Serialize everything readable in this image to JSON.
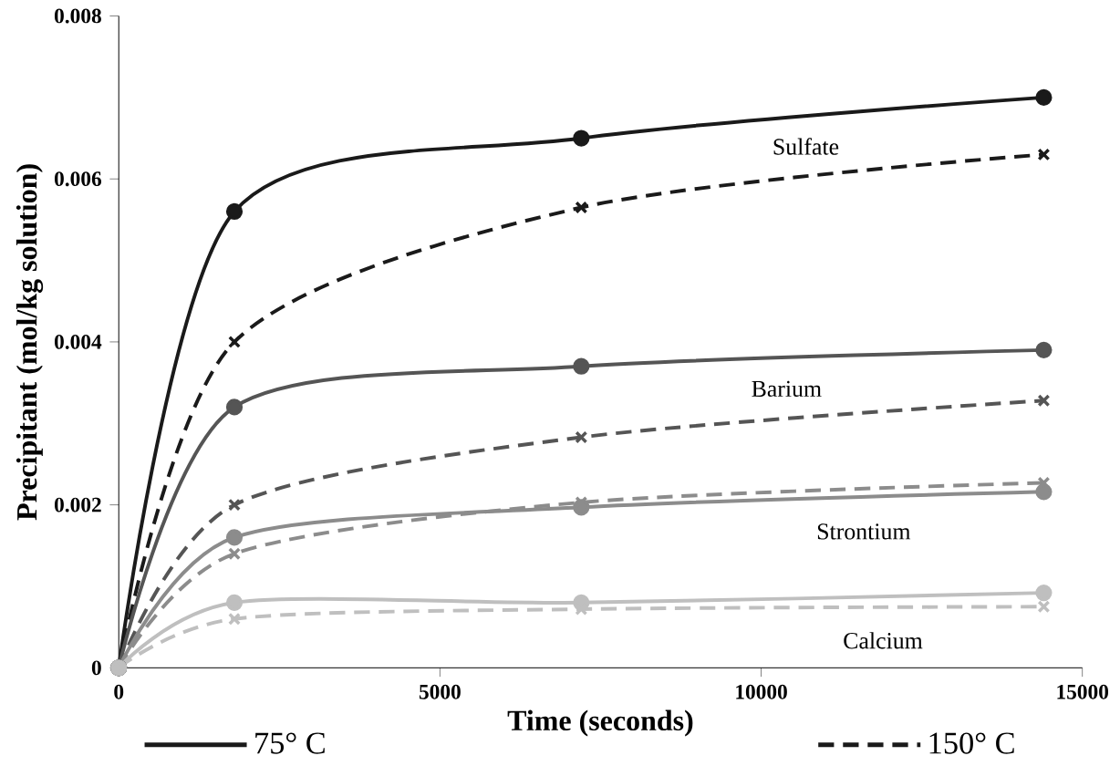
{
  "chart_data": {
    "type": "line",
    "xlabel": "Time (seconds)",
    "ylabel": "Precipitant (mol/kg solution)",
    "x": [
      0,
      1800,
      7200,
      14400
    ],
    "series": [
      {
        "name": "75° C",
        "color": "#1a1a1a",
        "marker": "circle",
        "line_style": "solid",
        "values": [
          0,
          0.0056,
          0.0065,
          0.007
        ]
      },
      {
        "name": "150° C",
        "color": "#1a1a1a",
        "marker": "cross",
        "line_style": "dashed",
        "values": [
          0,
          0.004,
          0.00565,
          0.0063
        ]
      },
      {
        "color": "#555555",
        "marker": "circle",
        "line_style": "solid",
        "values": [
          0,
          0.0032,
          0.0037,
          0.0039
        ]
      },
      {
        "color": "#555555",
        "marker": "cross",
        "line_style": "dashed",
        "values": [
          0,
          0.002,
          0.00283,
          0.00328
        ]
      },
      {
        "color": "#8c8c8c",
        "marker": "circle",
        "line_style": "solid",
        "values": [
          0,
          0.0016,
          0.00197,
          0.00216
        ]
      },
      {
        "color": "#8c8c8c",
        "marker": "cross",
        "line_style": "dashed",
        "values": [
          0,
          0.0014,
          0.00203,
          0.00227
        ]
      },
      {
        "color": "#bfbfbf",
        "marker": "circle",
        "line_style": "solid",
        "values": [
          0,
          0.0008,
          0.0008,
          0.00092
        ]
      },
      {
        "color": "#bfbfbf",
        "marker": "cross",
        "line_style": "dashed",
        "values": [
          0,
          0.0006,
          0.00072,
          0.00075
        ]
      }
    ],
    "annotations": [
      "Sulfate",
      "Barium",
      "Strontium",
      "Calcium"
    ],
    "xlim": [
      0,
      15000
    ],
    "xticks": [
      0,
      5000,
      10000,
      15000
    ],
    "ylim": [
      0,
      0.008
    ],
    "yticks": [
      0,
      0.002,
      0.004,
      0.006,
      0.008
    ],
    "grid": false,
    "legend": "bottom"
  }
}
